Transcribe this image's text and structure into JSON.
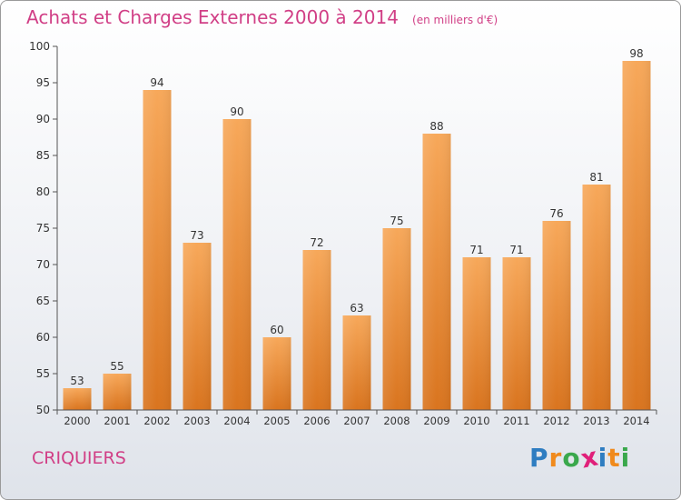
{
  "header": {
    "title": "Achats et Charges Externes 2000 à 2014",
    "subtitle": "(en milliers d'€)"
  },
  "footer": {
    "town": "CRIQUIERS",
    "brand": "Proxiti"
  },
  "colors": {
    "title": "#d13f86",
    "bar_light": "#f7a85a",
    "bar_dark": "#d9741e",
    "axis": "#333333",
    "grid": "#cfd3da",
    "brand": [
      "#2e7dc1",
      "#f08a1c",
      "#3aa84c",
      "#e0207a",
      "#2e7dc1",
      "#f08a1c",
      "#3aa84c"
    ]
  },
  "chart_data": {
    "type": "bar",
    "title": "Achats et Charges Externes 2000 à 2014",
    "subtitle": "(en milliers d'€)",
    "categories": [
      "2000",
      "2001",
      "2002",
      "2003",
      "2004",
      "2005",
      "2006",
      "2007",
      "2008",
      "2009",
      "2010",
      "2011",
      "2012",
      "2013",
      "2014"
    ],
    "values": [
      53,
      55,
      94,
      73,
      90,
      60,
      72,
      63,
      75,
      88,
      71,
      71,
      76,
      81,
      98
    ],
    "xlabel": "",
    "ylabel": "",
    "ylim": [
      50,
      100
    ],
    "yticks": [
      50,
      55,
      60,
      65,
      70,
      75,
      80,
      85,
      90,
      95,
      100
    ],
    "grid": false,
    "data_labels": true
  }
}
